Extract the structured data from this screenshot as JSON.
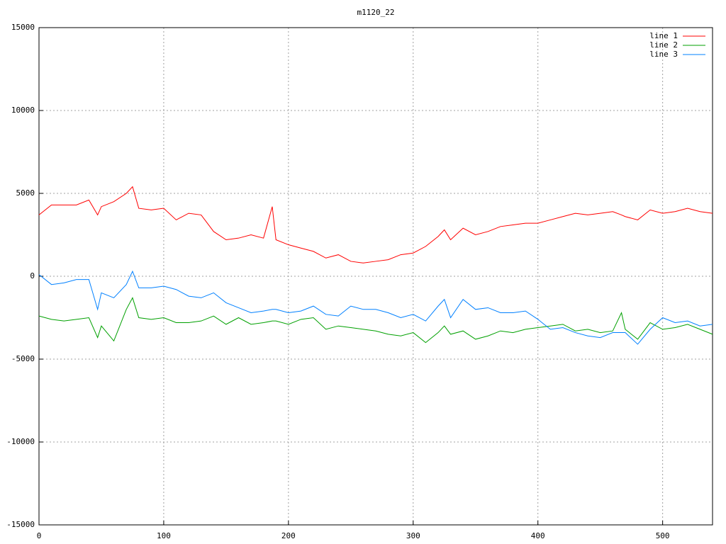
{
  "chart_data": {
    "type": "line",
    "title": "m1120_22",
    "x": [
      0,
      10,
      20,
      30,
      40,
      47,
      50,
      60,
      70,
      75,
      80,
      90,
      100,
      110,
      120,
      130,
      140,
      150,
      160,
      170,
      180,
      187,
      190,
      200,
      210,
      220,
      230,
      240,
      250,
      260,
      270,
      280,
      290,
      300,
      310,
      320,
      325,
      330,
      340,
      350,
      360,
      370,
      380,
      390,
      400,
      410,
      420,
      430,
      440,
      450,
      460,
      467,
      470,
      480,
      490,
      500,
      510,
      520,
      530,
      540
    ],
    "series": [
      {
        "name": "line 1",
        "color": "#ff0000",
        "values": [
          3700,
          4300,
          4300,
          4300,
          4600,
          3700,
          4200,
          4500,
          5000,
          5400,
          4100,
          4000,
          4100,
          3400,
          3800,
          3700,
          2700,
          2200,
          2300,
          2500,
          2300,
          4200,
          2200,
          1900,
          1700,
          1500,
          1100,
          1300,
          900,
          800,
          900,
          1000,
          1300,
          1400,
          1800,
          2400,
          2800,
          2200,
          2900,
          2500,
          2700,
          3000,
          3100,
          3200,
          3200,
          3400,
          3600,
          3800,
          3700,
          3800,
          3900,
          3700,
          3600,
          3400,
          4000,
          3800,
          3900,
          4100,
          3900,
          3800
        ]
      },
      {
        "name": "line 2",
        "color": "#00a000",
        "values": [
          -2400,
          -2600,
          -2700,
          -2600,
          -2500,
          -3700,
          -3000,
          -3900,
          -2000,
          -1300,
          -2500,
          -2600,
          -2500,
          -2800,
          -2800,
          -2700,
          -2400,
          -2900,
          -2500,
          -2900,
          -2800,
          -2700,
          -2700,
          -2900,
          -2600,
          -2500,
          -3200,
          -3000,
          -3100,
          -3200,
          -3300,
          -3500,
          -3600,
          -3400,
          -4000,
          -3400,
          -3000,
          -3500,
          -3300,
          -3800,
          -3600,
          -3300,
          -3400,
          -3200,
          -3100,
          -3000,
          -2900,
          -3300,
          -3200,
          -3400,
          -3300,
          -2200,
          -3200,
          -3800,
          -2800,
          -3200,
          -3100,
          -2900,
          -3200,
          -3500
        ]
      },
      {
        "name": "line 3",
        "color": "#0080ff",
        "values": [
          100,
          -500,
          -400,
          -200,
          -200,
          -2000,
          -1000,
          -1300,
          -500,
          300,
          -700,
          -700,
          -600,
          -800,
          -1200,
          -1300,
          -1000,
          -1600,
          -1900,
          -2200,
          -2100,
          -2000,
          -2000,
          -2200,
          -2100,
          -1800,
          -2300,
          -2400,
          -1800,
          -2000,
          -2000,
          -2200,
          -2500,
          -2300,
          -2700,
          -1800,
          -1400,
          -2500,
          -1400,
          -2000,
          -1900,
          -2200,
          -2200,
          -2100,
          -2600,
          -3200,
          -3100,
          -3400,
          -3600,
          -3700,
          -3400,
          -3400,
          -3400,
          -4100,
          -3200,
          -2500,
          -2800,
          -2700,
          -3000,
          -2900
        ]
      }
    ],
    "xlim": [
      0,
      540
    ],
    "xticks": [
      0,
      100,
      200,
      300,
      400,
      500
    ],
    "ylim": [
      -15000,
      15000
    ],
    "yticks": [
      -15000,
      -10000,
      -5000,
      0,
      5000,
      10000,
      15000
    ],
    "grid": true,
    "legend": "top-right"
  }
}
